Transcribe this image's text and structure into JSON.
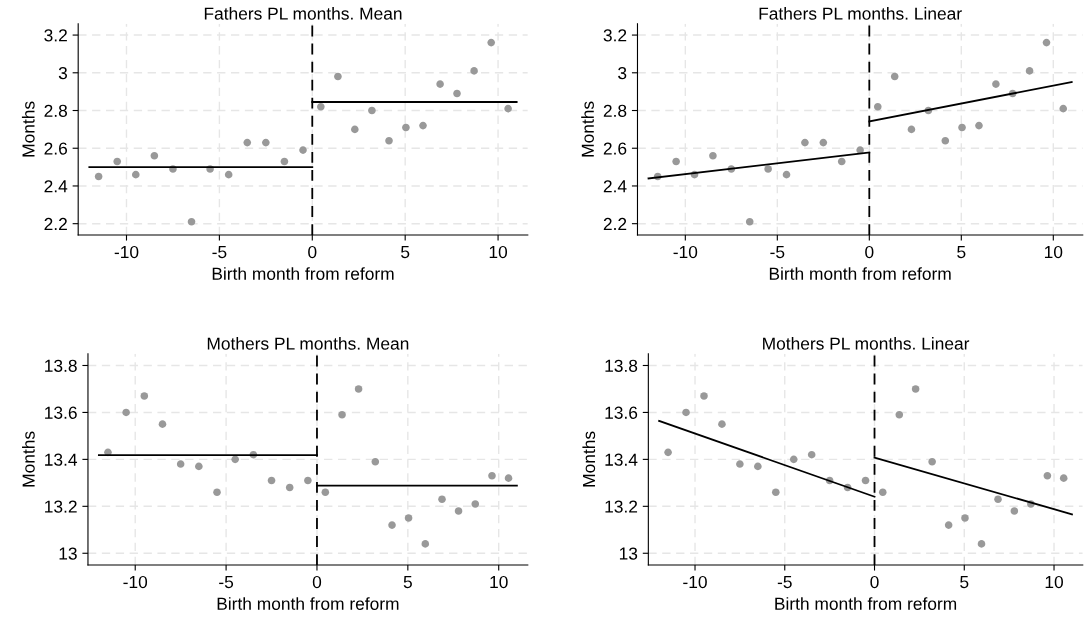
{
  "chart_data": [
    {
      "type": "scatter",
      "title": "Fathers PL months. Mean",
      "xlabel": "Birth month from reform",
      "ylabel": "Months",
      "xlim": [
        -12.6,
        11.6
      ],
      "ylim": [
        2.14,
        3.26
      ],
      "xticks": [
        -10,
        -5,
        0,
        5,
        10
      ],
      "yticks": [
        2.2,
        2.4,
        2.6,
        2.8,
        3,
        3.2
      ],
      "grid": true,
      "series": [
        {
          "marker": "circle",
          "color": "#999999",
          "x": [
            -11.5,
            -10.5,
            -9.5,
            -8.5,
            -7.5,
            -6.5,
            -5.5,
            -4.5,
            -3.5,
            -2.5,
            -1.5,
            -0.5,
            0.46,
            1.38,
            2.29,
            3.21,
            4.13,
            5.04,
            5.96,
            6.88,
            7.79,
            8.71,
            9.63,
            10.54
          ],
          "values": [
            2.45,
            2.53,
            2.46,
            2.56,
            2.49,
            2.21,
            2.49,
            2.46,
            2.63,
            2.63,
            2.53,
            2.59,
            2.82,
            2.98,
            2.7,
            2.8,
            2.64,
            2.71,
            2.72,
            2.94,
            2.89,
            3.01,
            3.16,
            2.81
          ]
        },
        {
          "type": "line",
          "color": "#000000",
          "x": [
            -12,
            0
          ],
          "values": [
            2.5,
            2.5
          ]
        },
        {
          "type": "line",
          "color": "#000000",
          "x": [
            0,
            11
          ],
          "values": [
            2.845,
            2.845
          ]
        }
      ],
      "ref_lines": [
        {
          "axis": "x",
          "value": 0,
          "color": "#000000",
          "line_style": "dashed"
        }
      ]
    },
    {
      "type": "scatter",
      "title": "Fathers PL months. Linear",
      "xlabel": "Birth month from reform",
      "ylabel": "Months",
      "xlim": [
        -12.6,
        11.6
      ],
      "ylim": [
        2.14,
        3.26
      ],
      "xticks": [
        -10,
        -5,
        0,
        5,
        10
      ],
      "yticks": [
        2.2,
        2.4,
        2.6,
        2.8,
        3,
        3.2
      ],
      "grid": true,
      "series": [
        {
          "marker": "circle",
          "color": "#999999",
          "x": [
            -11.5,
            -10.5,
            -9.5,
            -8.5,
            -7.5,
            -6.5,
            -5.5,
            -4.5,
            -3.5,
            -2.5,
            -1.5,
            -0.5,
            0.46,
            1.38,
            2.29,
            3.21,
            4.13,
            5.04,
            5.96,
            6.88,
            7.79,
            8.71,
            9.63,
            10.54
          ],
          "values": [
            2.45,
            2.53,
            2.46,
            2.56,
            2.49,
            2.21,
            2.49,
            2.46,
            2.63,
            2.63,
            2.53,
            2.59,
            2.82,
            2.98,
            2.7,
            2.8,
            2.64,
            2.71,
            2.72,
            2.94,
            2.89,
            3.01,
            3.16,
            2.81
          ]
        },
        {
          "type": "line",
          "color": "#000000",
          "x": [
            -12,
            0
          ],
          "values": [
            2.44,
            2.577
          ]
        },
        {
          "type": "line",
          "color": "#000000",
          "x": [
            0,
            11
          ],
          "values": [
            2.742,
            2.951
          ]
        }
      ],
      "ref_lines": [
        {
          "axis": "x",
          "value": 0,
          "color": "#000000",
          "line_style": "dashed"
        }
      ]
    },
    {
      "type": "scatter",
      "title": "Mothers PL months. Mean",
      "xlabel": "Birth month from reform",
      "ylabel": "Months",
      "xlim": [
        -12.6,
        11.6
      ],
      "ylim": [
        12.95,
        13.85
      ],
      "xticks": [
        -10,
        -5,
        0,
        5,
        10
      ],
      "yticks": [
        13,
        13.2,
        13.4,
        13.6,
        13.8
      ],
      "grid": true,
      "series": [
        {
          "marker": "circle",
          "color": "#999999",
          "x": [
            -11.5,
            -10.5,
            -9.5,
            -8.5,
            -7.5,
            -6.5,
            -5.5,
            -4.5,
            -3.5,
            -2.5,
            -1.5,
            -0.5,
            0.46,
            1.38,
            2.29,
            3.21,
            4.13,
            5.04,
            5.96,
            6.88,
            7.79,
            8.71,
            9.63,
            10.54
          ],
          "values": [
            13.43,
            13.6,
            13.67,
            13.55,
            13.38,
            13.37,
            13.26,
            13.4,
            13.42,
            13.31,
            13.28,
            13.31,
            13.26,
            13.59,
            13.7,
            13.39,
            13.12,
            13.15,
            13.04,
            13.23,
            13.18,
            13.21,
            13.33,
            13.32
          ]
        },
        {
          "type": "line",
          "color": "#000000",
          "x": [
            -12,
            0
          ],
          "values": [
            13.418,
            13.418
          ]
        },
        {
          "type": "line",
          "color": "#000000",
          "x": [
            0,
            11
          ],
          "values": [
            13.288,
            13.288
          ]
        }
      ],
      "ref_lines": [
        {
          "axis": "x",
          "value": 0,
          "color": "#000000",
          "line_style": "dashed"
        }
      ]
    },
    {
      "type": "scatter",
      "title": "Mothers PL months. Linear",
      "xlabel": "Birth month from reform",
      "ylabel": "Months",
      "xlim": [
        -12.6,
        11.6
      ],
      "ylim": [
        12.95,
        13.85
      ],
      "xticks": [
        -10,
        -5,
        0,
        5,
        10
      ],
      "yticks": [
        13,
        13.2,
        13.4,
        13.6,
        13.8
      ],
      "grid": true,
      "series": [
        {
          "marker": "circle",
          "color": "#999999",
          "x": [
            -11.5,
            -10.5,
            -9.5,
            -8.5,
            -7.5,
            -6.5,
            -5.5,
            -4.5,
            -3.5,
            -2.5,
            -1.5,
            -0.5,
            0.46,
            1.38,
            2.29,
            3.21,
            4.13,
            5.04,
            5.96,
            6.88,
            7.79,
            8.71,
            9.63,
            10.54
          ],
          "values": [
            13.43,
            13.6,
            13.67,
            13.55,
            13.38,
            13.37,
            13.26,
            13.4,
            13.42,
            13.31,
            13.28,
            13.31,
            13.26,
            13.59,
            13.7,
            13.39,
            13.12,
            13.15,
            13.04,
            13.23,
            13.18,
            13.21,
            13.33,
            13.32
          ]
        },
        {
          "type": "line",
          "color": "#000000",
          "x": [
            -12,
            0
          ],
          "values": [
            13.564,
            13.241
          ]
        },
        {
          "type": "line",
          "color": "#000000",
          "x": [
            0,
            11
          ],
          "values": [
            13.407,
            13.166
          ]
        }
      ],
      "ref_lines": [
        {
          "axis": "x",
          "value": 0,
          "color": "#000000",
          "line_style": "dashed"
        }
      ]
    }
  ]
}
